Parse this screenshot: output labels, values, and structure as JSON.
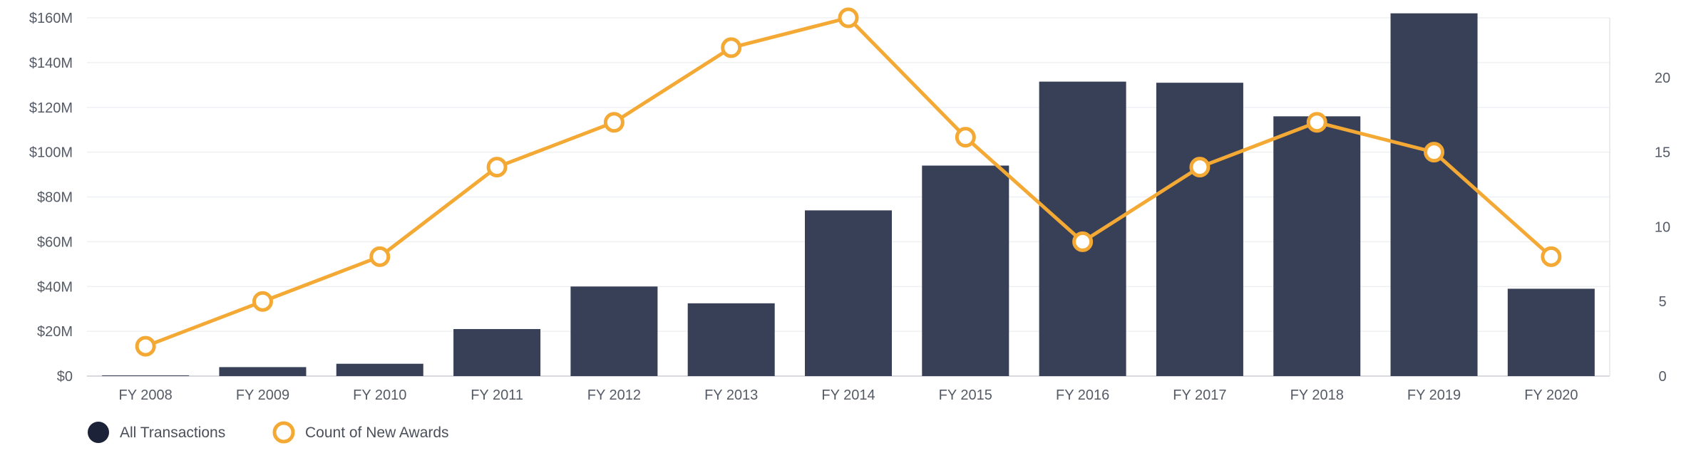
{
  "chart_data": {
    "type": "bar",
    "categories": [
      "FY 2008",
      "FY 2009",
      "FY 2010",
      "FY 2011",
      "FY 2012",
      "FY 2013",
      "FY 2014",
      "FY 2015",
      "FY 2016",
      "FY 2017",
      "FY 2018",
      "FY 2019",
      "FY 2020"
    ],
    "series": [
      {
        "name": "All Transactions",
        "type": "bar",
        "axis": "left",
        "color": "#384057",
        "values": [
          0.3,
          4,
          5.5,
          21,
          40,
          32.5,
          74,
          94,
          131.5,
          131,
          116,
          162,
          39
        ]
      },
      {
        "name": "Count of New Awards",
        "type": "line",
        "axis": "right",
        "color": "#f4a935",
        "values": [
          2,
          5,
          8,
          14,
          17,
          22,
          24,
          16,
          9,
          14,
          17,
          15,
          8
        ]
      }
    ],
    "y_left": {
      "ylim": [
        0,
        160
      ],
      "ticks": [
        0,
        20,
        40,
        60,
        80,
        100,
        120,
        140,
        160
      ],
      "tick_labels": [
        "$0",
        "$20M",
        "$40M",
        "$60M",
        "$80M",
        "$100M",
        "$120M",
        "$140M",
        "$160M"
      ]
    },
    "y_right": {
      "ylim": [
        0,
        24
      ],
      "ticks": [
        0,
        5,
        10,
        15,
        20
      ],
      "tick_labels": [
        "0",
        "5",
        "10",
        "15",
        "20"
      ]
    },
    "grid": true,
    "legend_position": "bottom-left",
    "legend": [
      {
        "label": "All Transactions",
        "marker": "filled-circle",
        "color": "#1c2237"
      },
      {
        "label": "Count of New Awards",
        "marker": "hollow-circle",
        "color": "#f4a935"
      }
    ]
  }
}
